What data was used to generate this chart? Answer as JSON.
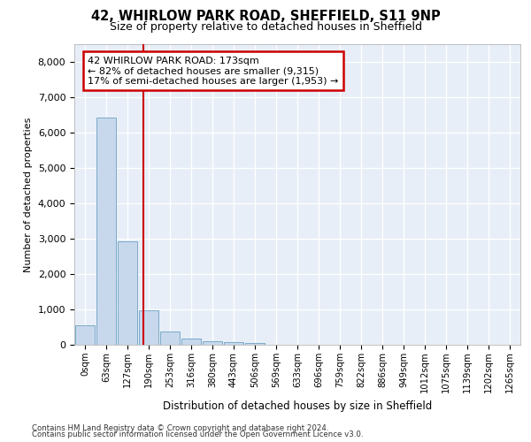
{
  "title1": "42, WHIRLOW PARK ROAD, SHEFFIELD, S11 9NP",
  "title2": "Size of property relative to detached houses in Sheffield",
  "xlabel": "Distribution of detached houses by size in Sheffield",
  "ylabel": "Number of detached properties",
  "bar_color": "#c8d8ec",
  "bar_edge_color": "#7aaac8",
  "background_color": "#e8eef8",
  "grid_color": "white",
  "vline_color": "#cc0000",
  "vline_x": 2.75,
  "annotation_line1": "42 WHIRLOW PARK ROAD: 173sqm",
  "annotation_line2": "← 82% of detached houses are smaller (9,315)",
  "annotation_line3": "17% of semi-detached houses are larger (1,953) →",
  "annotation_box_color": "white",
  "annotation_box_edge": "#cc0000",
  "ylim": [
    0,
    8500
  ],
  "yticks": [
    0,
    1000,
    2000,
    3000,
    4000,
    5000,
    6000,
    7000,
    8000
  ],
  "categories": [
    "0sqm",
    "63sqm",
    "127sqm",
    "190sqm",
    "253sqm",
    "316sqm",
    "380sqm",
    "443sqm",
    "506sqm",
    "569sqm",
    "633sqm",
    "696sqm",
    "759sqm",
    "822sqm",
    "886sqm",
    "949sqm",
    "1012sqm",
    "1075sqm",
    "1139sqm",
    "1202sqm",
    "1265sqm"
  ],
  "values": [
    555,
    6430,
    2930,
    980,
    380,
    175,
    110,
    75,
    40,
    0,
    0,
    0,
    0,
    0,
    0,
    0,
    0,
    0,
    0,
    0,
    0
  ],
  "footer1": "Contains HM Land Registry data © Crown copyright and database right 2024.",
  "footer2": "Contains public sector information licensed under the Open Government Licence v3.0."
}
